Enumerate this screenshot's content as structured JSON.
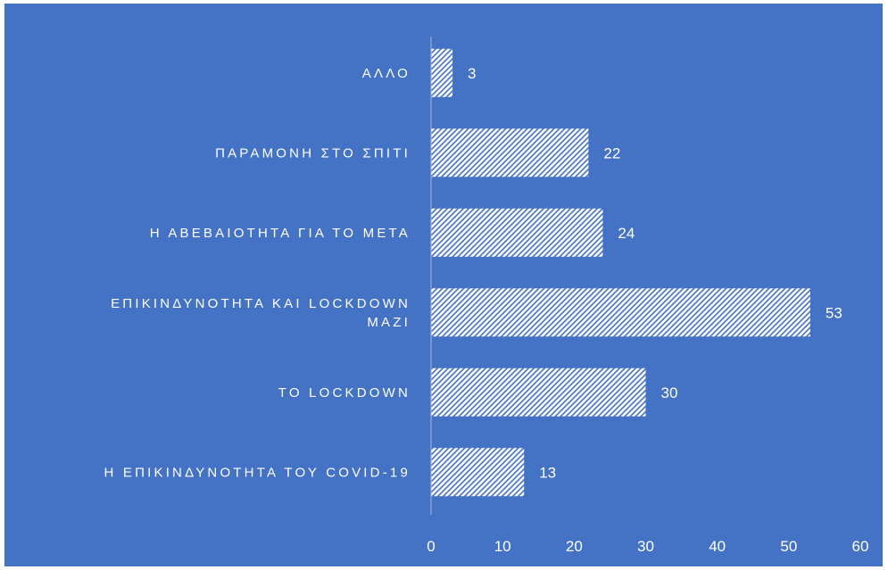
{
  "colors": {
    "background": "#4472C4",
    "bar_fill": "#ffffff",
    "bar_pattern": "#4472C4",
    "text": "#ffffff",
    "axis_line": "#A9B8DA"
  },
  "chart_data": {
    "type": "bar",
    "orientation": "horizontal",
    "categories": [
      "ΑΛΛΟ",
      "ΠΑΡΑΜΟΝΗ ΣΤΟ ΣΠΙΤΙ",
      "Η ΑΒΕΒΑΙΟΤΗΤΑ ΓΙΑ ΤΟ ΜΕΤΑ",
      "ΕΠΙΚΙΝΔΥΝΟΤΗΤΑ ΚΑΙ LOCKDOWN ΜΑΖΙ",
      "ΤΟ LOCKDOWN",
      "Η ΕΠΙΚΙΝΔΥΝΟΤΗΤΑ ΤΟΥ COVID-19"
    ],
    "category_lines": [
      [
        "ΑΛΛΟ"
      ],
      [
        "ΠΑΡΑΜΟΝΗ ΣΤΟ ΣΠΙΤΙ"
      ],
      [
        "Η ΑΒΕΒΑΙΟΤΗΤΑ ΓΙΑ ΤΟ ΜΕΤΑ"
      ],
      [
        "ΕΠΙΚΙΝΔΥΝΟΤΗΤΑ ΚΑΙ LOCKDOWN",
        "ΜΑΖΙ"
      ],
      [
        "ΤΟ LOCKDOWN"
      ],
      [
        "Η ΕΠΙΚΙΝΔΥΝΟΤΗΤΑ ΤΟΥ COVID-19"
      ]
    ],
    "values": [
      3,
      22,
      24,
      53,
      30,
      13
    ],
    "xlim": [
      0,
      60
    ],
    "xticks": [
      0,
      10,
      20,
      30,
      40,
      50,
      60
    ],
    "data_labels": true,
    "grid": false,
    "legend": "none",
    "bar_pattern": "diagonal-hatch"
  }
}
